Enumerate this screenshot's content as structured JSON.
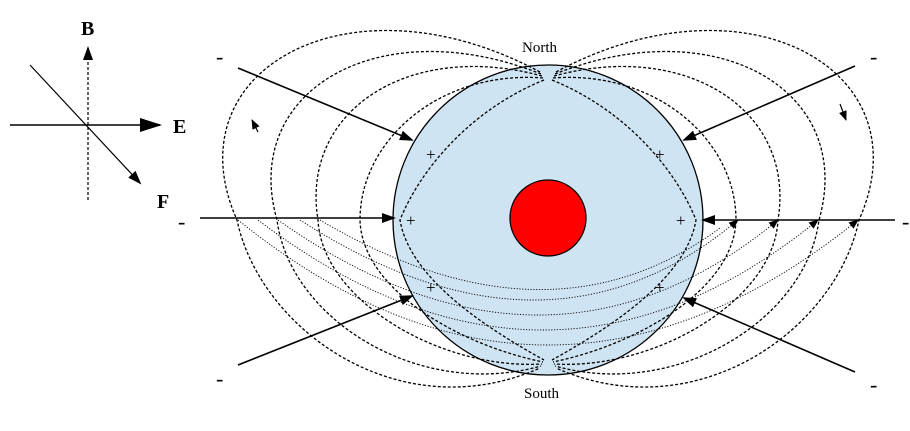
{
  "diagram": {
    "axes": {
      "b_label": "B",
      "e_label": "E",
      "f_label": "F"
    },
    "poles": {
      "north": "North",
      "south": "South"
    },
    "charges": {
      "minus": "-",
      "plus": "+"
    },
    "colors": {
      "sphere_fill": "#cfe4f2",
      "core_fill": "#ff0000",
      "line": "#000000"
    }
  }
}
